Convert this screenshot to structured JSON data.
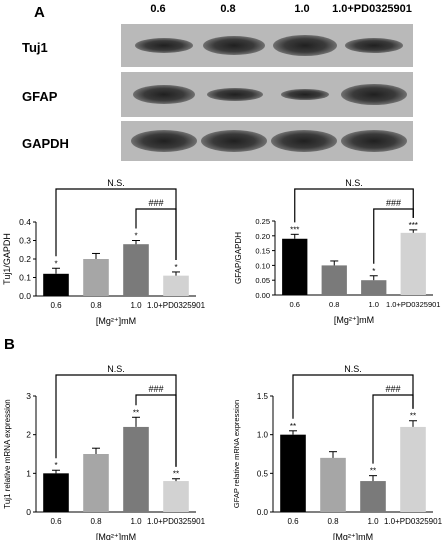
{
  "panel_a_label": "A",
  "panel_b_label": "B",
  "blot": {
    "lanes": [
      "0.6",
      "0.8",
      "1.0",
      "1.0+PD0325901"
    ],
    "rows": [
      {
        "name": "Tuj1",
        "intensity": [
          0.7,
          0.9,
          0.95,
          0.7
        ]
      },
      {
        "name": "GFAP",
        "intensity": [
          0.9,
          0.6,
          0.45,
          1.0
        ]
      },
      {
        "name": "GAPDH",
        "intensity": [
          1.0,
          1.0,
          1.0,
          1.0
        ]
      }
    ]
  },
  "chart_data": [
    {
      "type": "bar",
      "panel": "A",
      "categories": [
        "0.6",
        "0.8",
        "1.0",
        "1.0+PD0325901"
      ],
      "values": [
        0.12,
        0.2,
        0.28,
        0.11
      ],
      "errors": [
        0.03,
        0.03,
        0.02,
        0.02
      ],
      "sig": [
        "*",
        "",
        "*",
        "*"
      ],
      "ylabel": "Tuj1/GAPDH",
      "xlabel": "[Mg²⁺]mM",
      "ylim": [
        0,
        0.4
      ],
      "yticks": [
        "0.0",
        "0.1",
        "0.2",
        "0.3",
        "0.4"
      ],
      "bar_colors": [
        "#000000",
        "#a6a6a6",
        "#7a7a7a",
        "#d2d2d2"
      ],
      "brackets": [
        {
          "from": 0,
          "to": 3,
          "label": "N.S."
        },
        {
          "from": 2,
          "to": 3,
          "label": "###"
        }
      ]
    },
    {
      "type": "bar",
      "panel": "A",
      "categories": [
        "0.6",
        "0.8",
        "1.0",
        "1.0+PD0325901"
      ],
      "values": [
        0.19,
        0.1,
        0.05,
        0.21
      ],
      "errors": [
        0.015,
        0.015,
        0.015,
        0.01
      ],
      "sig": [
        "***",
        "",
        "*",
        "***"
      ],
      "ylabel": "GFAP/GAPDH",
      "xlabel": "[Mg²⁺]mM",
      "ylim": [
        0,
        0.25
      ],
      "yticks": [
        "0.00",
        "0.05",
        "0.10",
        "0.15",
        "0.20",
        "0.25"
      ],
      "bar_colors": [
        "#000000",
        "#7a7a7a",
        "#7a7a7a",
        "#d2d2d2"
      ],
      "brackets": [
        {
          "from": 0,
          "to": 3,
          "label": "N.S."
        },
        {
          "from": 2,
          "to": 3,
          "label": "###"
        }
      ]
    },
    {
      "type": "bar",
      "panel": "B",
      "categories": [
        "0.6",
        "0.8",
        "1.0",
        "1.0+PD0325901"
      ],
      "values": [
        1.0,
        1.5,
        2.2,
        0.8
      ],
      "errors": [
        0.08,
        0.15,
        0.25,
        0.06
      ],
      "sig": [
        "*",
        "",
        "**",
        "**"
      ],
      "ylabel": "Tuj1 relative mRNA expression",
      "xlabel": "[Mg²⁺]mM",
      "ylim": [
        0,
        3
      ],
      "yticks": [
        "0",
        "1",
        "2",
        "3"
      ],
      "bar_colors": [
        "#000000",
        "#a6a6a6",
        "#7a7a7a",
        "#d2d2d2"
      ],
      "brackets": [
        {
          "from": 0,
          "to": 3,
          "label": "N.S."
        },
        {
          "from": 2,
          "to": 3,
          "label": "###"
        }
      ]
    },
    {
      "type": "bar",
      "panel": "B",
      "categories": [
        "0.6",
        "0.8",
        "1.0",
        "1.0+PD0325901"
      ],
      "values": [
        1.0,
        0.7,
        0.4,
        1.1
      ],
      "errors": [
        0.05,
        0.08,
        0.07,
        0.08
      ],
      "sig": [
        "**",
        "",
        "**",
        "**"
      ],
      "ylabel": "GFAP relative mRNA expression",
      "xlabel": "[Mg²⁺]mM",
      "ylim": [
        0,
        1.5
      ],
      "yticks": [
        "0.0",
        "0.5",
        "1.0",
        "1.5"
      ],
      "bar_colors": [
        "#000000",
        "#a6a6a6",
        "#7a7a7a",
        "#d2d2d2"
      ],
      "brackets": [
        {
          "from": 0,
          "to": 3,
          "label": "N.S."
        },
        {
          "from": 2,
          "to": 3,
          "label": "###"
        }
      ]
    }
  ]
}
